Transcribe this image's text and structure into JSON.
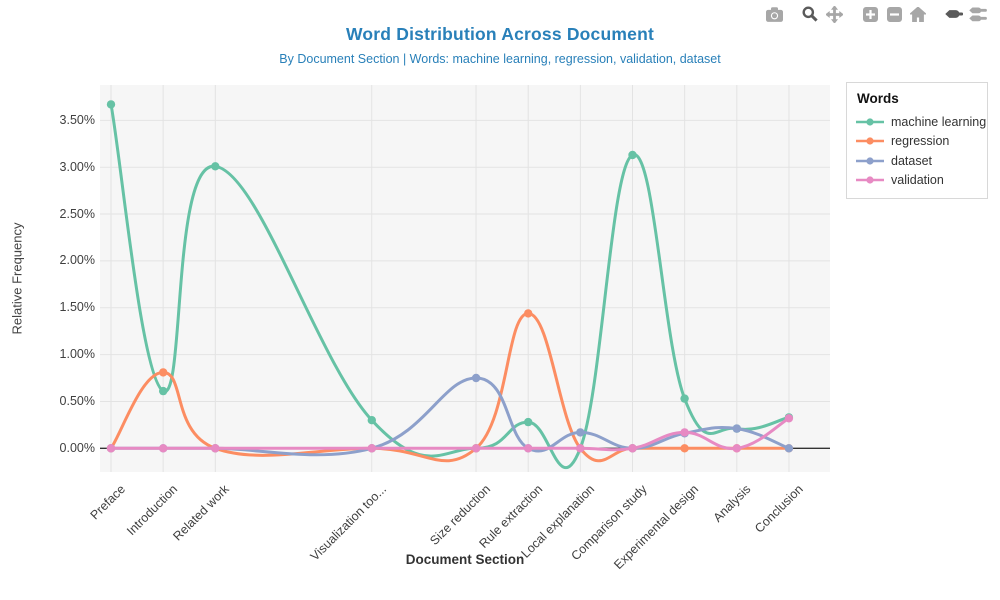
{
  "header": {
    "title": "Word Distribution Across Document",
    "subtitle": "By Document Section | Words: machine learning, regression, validation, dataset"
  },
  "modebar": {
    "icons": [
      "camera",
      "zoom",
      "pan",
      "zoom-in",
      "zoom-out",
      "reset-axes",
      "hover-closest",
      "hover-compare"
    ],
    "active_icons": [
      "zoom",
      "hover-closest"
    ],
    "inactive_color": "#a7a7a7",
    "active_color": "#5a5a5a"
  },
  "axes": {
    "x_title": "Document Section",
    "y_title": "Relative Frequency"
  },
  "legend": {
    "title": "Words"
  },
  "chart_data": {
    "type": "line",
    "line_shape": "spline",
    "title": "Word Distribution Across Document",
    "xlabel": "Document Section",
    "ylabel": "Relative Frequency",
    "categories": [
      "Preface",
      "Introduction",
      "Related work",
      "Visualization too...",
      "Size reduction",
      "Rule extraction",
      "Local explanation",
      "Comparison study",
      "Experimental design",
      "Analysis",
      "Conclusion"
    ],
    "x_positions": [
      0,
      1,
      2,
      5,
      7,
      8,
      9,
      10,
      11,
      12,
      13
    ],
    "series": [
      {
        "name": "machine learning",
        "color": "#66c2a5",
        "values_percent": [
          3.67,
          0.61,
          3.01,
          0.3,
          0.0,
          0.28,
          0.0,
          3.13,
          0.53,
          0.21,
          0.33
        ]
      },
      {
        "name": "regression",
        "color": "#fc8d62",
        "values_percent": [
          0.0,
          0.81,
          0.0,
          0.0,
          0.0,
          1.44,
          0.0,
          0.0,
          0.0,
          0.0,
          0.0
        ]
      },
      {
        "name": "dataset",
        "color": "#8da0cb",
        "values_percent": [
          0.0,
          0.0,
          0.0,
          0.0,
          0.75,
          0.0,
          0.17,
          0.0,
          0.16,
          0.21,
          0.0
        ]
      },
      {
        "name": "validation",
        "color": "#e78ac3",
        "values_percent": [
          0.0,
          0.0,
          0.0,
          0.0,
          0.0,
          0.0,
          0.0,
          0.0,
          0.17,
          0.0,
          0.32
        ]
      }
    ],
    "y_tick_labels": [
      "0.00%",
      "0.50%",
      "1.00%",
      "1.50%",
      "2.00%",
      "2.50%",
      "3.00%",
      "3.50%"
    ],
    "y_tick_values_percent": [
      0,
      0.5,
      1.0,
      1.5,
      2.0,
      2.5,
      3.0,
      3.5
    ],
    "ylim_percent": [
      -0.25,
      3.88
    ],
    "grid": true,
    "legend_title": "Words",
    "legend_position": "outside-top-right",
    "plot_bg": "#f6f6f6",
    "grid_color": "#e3e3e3",
    "zero_line_color": "#333333"
  }
}
